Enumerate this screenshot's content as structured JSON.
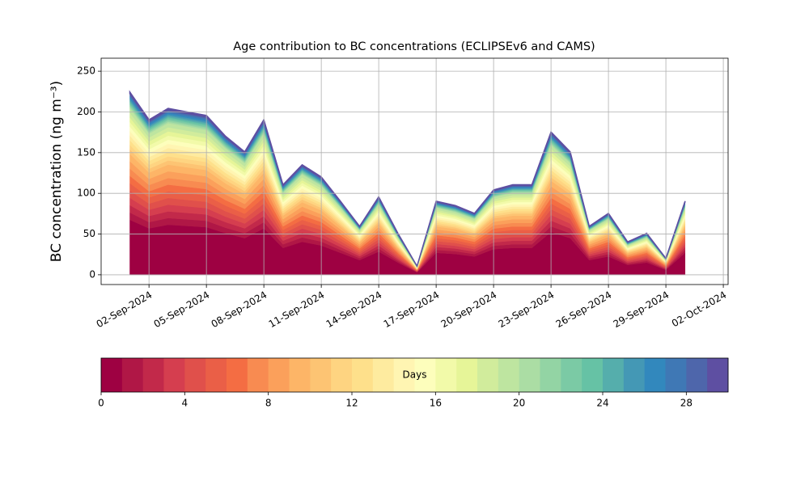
{
  "chart_data": {
    "type": "stacked_area",
    "title": "Age contribution to BC concentrations (ECLIPSEv6 and CAMS)",
    "y_label": "BC concentration (ng m⁻³)",
    "x": [
      "2024-09-01",
      "2024-09-02",
      "2024-09-03",
      "2024-09-04",
      "2024-09-05",
      "2024-09-06",
      "2024-09-07",
      "2024-09-08",
      "2024-09-09",
      "2024-09-10",
      "2024-09-11",
      "2024-09-12",
      "2024-09-13",
      "2024-09-14",
      "2024-09-15",
      "2024-09-16",
      "2024-09-17",
      "2024-09-18",
      "2024-09-19",
      "2024-09-20",
      "2024-09-21",
      "2024-09-22",
      "2024-09-23",
      "2024-09-24",
      "2024-09-25",
      "2024-09-26",
      "2024-09-27",
      "2024-09-28",
      "2024-09-29",
      "2024-09-30"
    ],
    "series": [
      {
        "color": "#9e0142",
        "values": [
          67.5,
          57,
          61.5,
          60,
          58.5,
          51,
          45,
          57,
          33,
          40.5,
          36,
          27,
          18,
          28.5,
          15,
          3,
          27,
          25.5,
          22.5,
          31.5,
          33,
          33,
          52.5,
          45,
          18,
          22.5,
          12,
          15,
          6,
          27
        ]
      },
      {
        "color": "#b01746",
        "values": [
          9,
          7.6,
          8.2,
          8,
          7.8,
          6.8,
          6,
          7.6,
          4.4,
          5.4,
          4.8,
          3.6,
          2.4,
          3.8,
          2,
          0.4,
          3.6,
          3.4,
          3,
          4.2,
          4.4,
          4.4,
          7,
          6,
          2.4,
          3,
          1.6,
          2,
          0.8,
          3.6
        ]
      },
      {
        "color": "#c2294a",
        "values": [
          9,
          7.6,
          8.2,
          8,
          7.8,
          6.8,
          6,
          7.6,
          4.4,
          5.4,
          4.8,
          3.6,
          2.4,
          3.8,
          2,
          0.4,
          3.6,
          3.4,
          3,
          4.2,
          4.4,
          4.4,
          7,
          6,
          2.4,
          3,
          1.6,
          2,
          0.8,
          3.6
        ]
      },
      {
        "color": "#d53e4f",
        "values": [
          9,
          7.6,
          8.2,
          8,
          7.8,
          6.8,
          6,
          7.6,
          4.4,
          5.4,
          4.8,
          3.6,
          2.4,
          3.8,
          2,
          0.4,
          3.6,
          3.4,
          3,
          4.2,
          4.4,
          4.4,
          7,
          6,
          2.4,
          3,
          1.6,
          2,
          0.8,
          3.6
        ]
      },
      {
        "color": "#e0504b",
        "values": [
          9,
          7.6,
          8.2,
          8,
          7.8,
          6.8,
          6,
          7.6,
          4.4,
          5.4,
          4.8,
          3.6,
          2.4,
          3.8,
          2,
          0.4,
          3.6,
          3.4,
          3,
          4.2,
          4.4,
          4.4,
          7,
          6,
          2.4,
          3,
          1.6,
          2,
          0.8,
          3.6
        ]
      },
      {
        "color": "#ea5f47",
        "values": [
          9,
          7.6,
          8.2,
          8,
          7.8,
          6.8,
          6,
          7.6,
          4.4,
          5.4,
          4.8,
          3.6,
          2.4,
          3.8,
          2,
          0.4,
          3.6,
          3.4,
          3,
          4.2,
          4.4,
          4.4,
          7,
          6,
          2.4,
          3,
          1.6,
          2,
          0.8,
          3.6
        ]
      },
      {
        "color": "#f46d43",
        "values": [
          9,
          7.6,
          8.2,
          8,
          7.8,
          6.8,
          6,
          7.6,
          4.4,
          5.4,
          4.8,
          3.6,
          2.4,
          3.8,
          2,
          0.4,
          3.6,
          3.4,
          3,
          4.2,
          4.4,
          4.4,
          7,
          6,
          2.4,
          3,
          1.6,
          2,
          0.8,
          3.6
        ]
      },
      {
        "color": "#f88b51",
        "values": [
          9,
          7.6,
          8.2,
          8,
          7.8,
          6.8,
          6,
          7.6,
          4.4,
          5.4,
          4.8,
          3.6,
          2.4,
          3.8,
          2,
          0.4,
          3.6,
          3.4,
          3,
          4.2,
          4.4,
          4.4,
          7,
          6,
          2.4,
          3,
          1.6,
          2,
          0.8,
          3.6
        ]
      },
      {
        "color": "#fba05b",
        "values": [
          9,
          7.6,
          8.2,
          8,
          7.8,
          6.8,
          6,
          7.6,
          4.4,
          5.4,
          4.8,
          3.6,
          2.4,
          3.8,
          2,
          0.4,
          3.6,
          3.4,
          3,
          4.2,
          4.4,
          4.4,
          7,
          6,
          2.4,
          3,
          1.6,
          2,
          0.8,
          3.6
        ]
      },
      {
        "color": "#fdb567",
        "values": [
          9,
          7.6,
          8.2,
          8,
          7.8,
          6.8,
          6,
          7.6,
          4.4,
          5.4,
          4.8,
          3.6,
          2.4,
          3.8,
          2,
          0.4,
          3.6,
          3.4,
          3,
          4.2,
          4.4,
          4.4,
          7,
          6,
          2.4,
          3,
          1.6,
          2,
          0.8,
          3.6
        ]
      },
      {
        "color": "#fdc473",
        "values": [
          5.6,
          4.8,
          5.1,
          5,
          4.9,
          4.3,
          3.8,
          4.8,
          2.8,
          3.4,
          3,
          2.3,
          1.5,
          2.4,
          1.3,
          0.3,
          2.3,
          2.1,
          1.9,
          2.6,
          2.8,
          2.8,
          4.4,
          3.8,
          1.5,
          1.9,
          1,
          1.3,
          0.5,
          2.3
        ]
      },
      {
        "color": "#fed481",
        "values": [
          5.6,
          4.8,
          5.1,
          5,
          4.9,
          4.3,
          3.8,
          4.8,
          2.8,
          3.4,
          3,
          2.3,
          1.5,
          2.4,
          1.3,
          0.3,
          2.3,
          2.1,
          1.9,
          2.6,
          2.8,
          2.8,
          4.4,
          3.8,
          1.5,
          1.9,
          1,
          1.3,
          0.5,
          2.3
        ]
      },
      {
        "color": "#fee08b",
        "values": [
          5.6,
          4.8,
          5.1,
          5,
          4.9,
          4.3,
          3.8,
          4.8,
          2.8,
          3.4,
          3,
          2.3,
          1.5,
          2.4,
          1.3,
          0.3,
          2.3,
          2.1,
          1.9,
          2.6,
          2.8,
          2.8,
          4.4,
          3.8,
          1.5,
          1.9,
          1,
          1.3,
          0.5,
          2.3
        ]
      },
      {
        "color": "#feeb9f",
        "values": [
          5.6,
          4.8,
          5.1,
          5,
          4.9,
          4.3,
          3.8,
          4.8,
          2.8,
          3.4,
          3,
          2.3,
          1.5,
          2.4,
          1.3,
          0.3,
          2.3,
          2.1,
          1.9,
          2.6,
          2.8,
          2.8,
          4.4,
          3.8,
          1.5,
          1.9,
          1,
          1.3,
          0.5,
          2.3
        ]
      },
      {
        "color": "#fff5b2",
        "values": [
          5.6,
          4.8,
          5.1,
          5,
          4.9,
          4.3,
          3.8,
          4.8,
          2.8,
          3.4,
          3,
          2.3,
          1.5,
          2.4,
          1.3,
          0.3,
          2.3,
          2.1,
          1.9,
          2.6,
          2.8,
          2.8,
          4.4,
          3.8,
          1.5,
          1.9,
          1,
          1.3,
          0.5,
          2.3
        ]
      },
      {
        "color": "#fdfebc",
        "values": [
          5.6,
          4.8,
          5.1,
          5,
          4.9,
          4.3,
          3.8,
          4.8,
          2.8,
          3.4,
          3,
          2.3,
          1.5,
          2.4,
          1.3,
          0.3,
          2.3,
          2.1,
          1.9,
          2.6,
          2.8,
          2.8,
          4.4,
          3.8,
          1.5,
          1.9,
          1,
          1.3,
          0.5,
          2.3
        ]
      },
      {
        "color": "#f2faa9",
        "values": [
          5.6,
          4.8,
          5.1,
          5,
          4.9,
          4.3,
          3.8,
          4.8,
          2.8,
          3.4,
          3,
          2.3,
          1.5,
          2.4,
          1.3,
          0.3,
          2.3,
          2.1,
          1.9,
          2.6,
          2.8,
          2.8,
          4.4,
          3.8,
          1.5,
          1.9,
          1,
          1.3,
          0.5,
          2.3
        ]
      },
      {
        "color": "#e6f598",
        "values": [
          5.6,
          4.8,
          5.1,
          5,
          4.9,
          4.3,
          3.8,
          4.8,
          2.8,
          3.4,
          3,
          2.3,
          1.5,
          2.4,
          1.3,
          0.3,
          2.3,
          2.1,
          1.9,
          2.6,
          2.8,
          2.8,
          4.4,
          3.8,
          1.5,
          1.9,
          1,
          1.3,
          0.5,
          2.3
        ]
      },
      {
        "color": "#d1ec9c",
        "values": [
          5.6,
          4.8,
          5.1,
          5,
          4.9,
          4.3,
          3.8,
          4.8,
          2.8,
          3.4,
          3,
          2.3,
          1.5,
          2.4,
          1.3,
          0.3,
          2.3,
          2.1,
          1.9,
          2.6,
          2.8,
          2.8,
          4.4,
          3.8,
          1.5,
          1.9,
          1,
          1.3,
          0.5,
          2.3
        ]
      },
      {
        "color": "#bee5a0",
        "values": [
          5.6,
          4.8,
          5.1,
          5,
          4.9,
          4.3,
          3.8,
          4.8,
          2.8,
          3.4,
          3,
          2.3,
          1.5,
          2.4,
          1.3,
          0.3,
          2.3,
          2.1,
          1.9,
          2.6,
          2.8,
          2.8,
          4.4,
          3.8,
          1.5,
          1.9,
          1,
          1.3,
          0.5,
          2.3
        ]
      },
      {
        "color": "#abdda4",
        "values": [
          2,
          1.7,
          1.8,
          1.8,
          1.8,
          1.5,
          1.4,
          1.7,
          1,
          1.2,
          1.1,
          0.8,
          0.5,
          0.9,
          0.5,
          0.1,
          0.8,
          0.8,
          0.7,
          0.9,
          1,
          1,
          1.6,
          1.4,
          0.5,
          0.7,
          0.4,
          0.5,
          0.2,
          0.8
        ]
      },
      {
        "color": "#93d4a4",
        "values": [
          2,
          1.7,
          1.8,
          1.8,
          1.8,
          1.5,
          1.4,
          1.7,
          1,
          1.2,
          1.1,
          0.8,
          0.5,
          0.9,
          0.5,
          0.1,
          0.8,
          0.8,
          0.7,
          0.9,
          1,
          1,
          1.6,
          1.4,
          0.5,
          0.7,
          0.4,
          0.5,
          0.2,
          0.8
        ]
      },
      {
        "color": "#7bcaa5",
        "values": [
          2,
          1.7,
          1.8,
          1.8,
          1.8,
          1.5,
          1.4,
          1.7,
          1,
          1.2,
          1.1,
          0.8,
          0.5,
          0.9,
          0.5,
          0.1,
          0.8,
          0.8,
          0.7,
          0.9,
          1,
          1,
          1.6,
          1.4,
          0.5,
          0.7,
          0.4,
          0.5,
          0.2,
          0.8
        ]
      },
      {
        "color": "#66c2a5",
        "values": [
          2,
          1.7,
          1.8,
          1.8,
          1.8,
          1.5,
          1.4,
          1.7,
          1,
          1.2,
          1.1,
          0.8,
          0.5,
          0.9,
          0.5,
          0.1,
          0.8,
          0.8,
          0.7,
          0.9,
          1,
          1,
          1.6,
          1.4,
          0.5,
          0.7,
          0.4,
          0.5,
          0.2,
          0.8
        ]
      },
      {
        "color": "#55aeac",
        "values": [
          2,
          1.7,
          1.8,
          1.8,
          1.8,
          1.5,
          1.4,
          1.7,
          1,
          1.2,
          1.1,
          0.8,
          0.5,
          0.9,
          0.5,
          0.1,
          0.8,
          0.8,
          0.7,
          0.9,
          1,
          1,
          1.6,
          1.4,
          0.5,
          0.7,
          0.4,
          0.5,
          0.2,
          0.8
        ]
      },
      {
        "color": "#4498b5",
        "values": [
          2,
          1.7,
          1.8,
          1.8,
          1.8,
          1.5,
          1.4,
          1.7,
          1,
          1.2,
          1.1,
          0.8,
          0.5,
          0.9,
          0.5,
          0.1,
          0.8,
          0.8,
          0.7,
          0.9,
          1,
          1,
          1.6,
          1.4,
          0.5,
          0.7,
          0.4,
          0.5,
          0.2,
          0.8
        ]
      },
      {
        "color": "#3288bd",
        "values": [
          2,
          1.7,
          1.8,
          1.8,
          1.8,
          1.5,
          1.4,
          1.7,
          1,
          1.2,
          1.1,
          0.8,
          0.5,
          0.9,
          0.5,
          0.1,
          0.8,
          0.8,
          0.7,
          0.9,
          1,
          1,
          1.6,
          1.4,
          0.5,
          0.7,
          0.4,
          0.5,
          0.2,
          0.8
        ]
      },
      {
        "color": "#3f78b5",
        "values": [
          2,
          1.7,
          1.8,
          1.8,
          1.8,
          1.5,
          1.4,
          1.7,
          1,
          1.2,
          1.1,
          0.8,
          0.5,
          0.9,
          0.5,
          0.1,
          0.8,
          0.8,
          0.7,
          0.9,
          1,
          1,
          1.6,
          1.4,
          0.5,
          0.7,
          0.4,
          0.5,
          0.2,
          0.8
        ]
      },
      {
        "color": "#4e66ab",
        "values": [
          2,
          1.7,
          1.8,
          1.8,
          1.8,
          1.5,
          1.4,
          1.7,
          1,
          1.2,
          1.1,
          0.8,
          0.5,
          0.9,
          0.5,
          0.1,
          0.8,
          0.8,
          0.7,
          0.9,
          1,
          1,
          1.6,
          1.4,
          0.5,
          0.7,
          0.4,
          0.5,
          0.2,
          0.8
        ]
      },
      {
        "color": "#5e4fa2",
        "values": [
          2,
          1.7,
          1.8,
          1.8,
          1.8,
          1.5,
          1.4,
          1.7,
          1,
          1.2,
          1.1,
          0.8,
          0.5,
          0.9,
          0.5,
          0.1,
          0.8,
          0.8,
          0.7,
          0.9,
          1,
          1,
          1.6,
          1.4,
          0.5,
          0.7,
          0.4,
          0.5,
          0.2,
          0.8
        ]
      }
    ],
    "xlim": [
      "2024-08-30T12:00",
      "2024-10-02T06:00"
    ],
    "xticks": [
      {
        "value": "2024-09-02",
        "label": "02-Sep-2024"
      },
      {
        "value": "2024-09-05",
        "label": "05-Sep-2024"
      },
      {
        "value": "2024-09-08",
        "label": "08-Sep-2024"
      },
      {
        "value": "2024-09-11",
        "label": "11-Sep-2024"
      },
      {
        "value": "2024-09-14",
        "label": "14-Sep-2024"
      },
      {
        "value": "2024-09-17",
        "label": "17-Sep-2024"
      },
      {
        "value": "2024-09-20",
        "label": "20-Sep-2024"
      },
      {
        "value": "2024-09-23",
        "label": "23-Sep-2024"
      },
      {
        "value": "2024-09-26",
        "label": "26-Sep-2024"
      },
      {
        "value": "2024-09-29",
        "label": "29-Sep-2024"
      },
      {
        "value": "2024-10-02",
        "label": "02-Oct-2024"
      }
    ],
    "ylim": [
      -12,
      266
    ],
    "yticks": [
      0,
      50,
      100,
      150,
      200,
      250
    ],
    "grid": true,
    "colorbar": {
      "label": "Days",
      "lim": [
        0,
        30
      ],
      "ticks": [
        0,
        4,
        8,
        12,
        16,
        20,
        24,
        28
      ]
    }
  }
}
